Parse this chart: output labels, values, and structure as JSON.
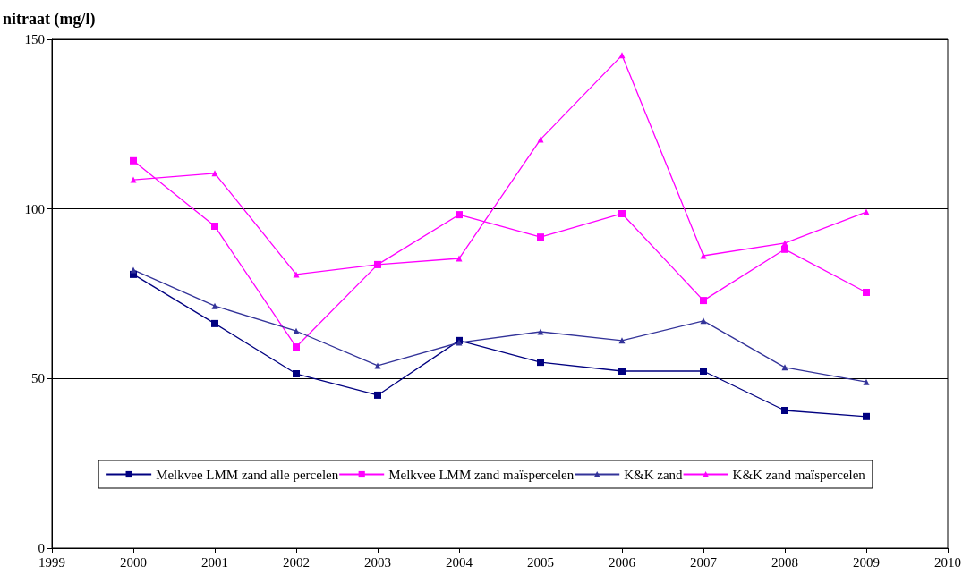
{
  "chart_data": {
    "type": "line",
    "ylabel": "nitraat (mg/l)",
    "x": [
      2000,
      2001,
      2002,
      2003,
      2004,
      2005,
      2006,
      2007,
      2008,
      2009
    ],
    "xlim": [
      1999,
      2010
    ],
    "xticks": [
      1999,
      2000,
      2001,
      2002,
      2003,
      2004,
      2005,
      2006,
      2007,
      2008,
      2009,
      2010
    ],
    "ylim": [
      0,
      150
    ],
    "yticks": [
      0,
      50,
      100,
      150
    ],
    "grid": "y",
    "legend": "bottom",
    "series": [
      {
        "name": "Melkvee LMM zand alle percelen",
        "color": "#000080",
        "marker": "square",
        "values": [
          80.7,
          66.2,
          51.4,
          45.1,
          61.2,
          54.8,
          52.2,
          52.2,
          40.6,
          38.8
        ]
      },
      {
        "name": "Melkvee LMM zand maïspercelen",
        "color": "#ff00ff",
        "marker": "square",
        "values": [
          114.2,
          94.9,
          59.3,
          83.6,
          98.3,
          91.7,
          98.6,
          73.0,
          88.1,
          75.4
        ]
      },
      {
        "name": "K&K zand",
        "color": "#333399",
        "marker": "triangle",
        "values": [
          82,
          71.4,
          64,
          53.8,
          60.6,
          63.8,
          61.2,
          67,
          53.3,
          49
        ]
      },
      {
        "name": "K&K zand maïspercelen",
        "color": "#ff00ff",
        "marker": "triangle",
        "values": [
          108.6,
          110.5,
          80.7,
          83.6,
          85.4,
          120.5,
          145.3,
          86.2,
          89.9,
          99.1
        ]
      }
    ]
  }
}
